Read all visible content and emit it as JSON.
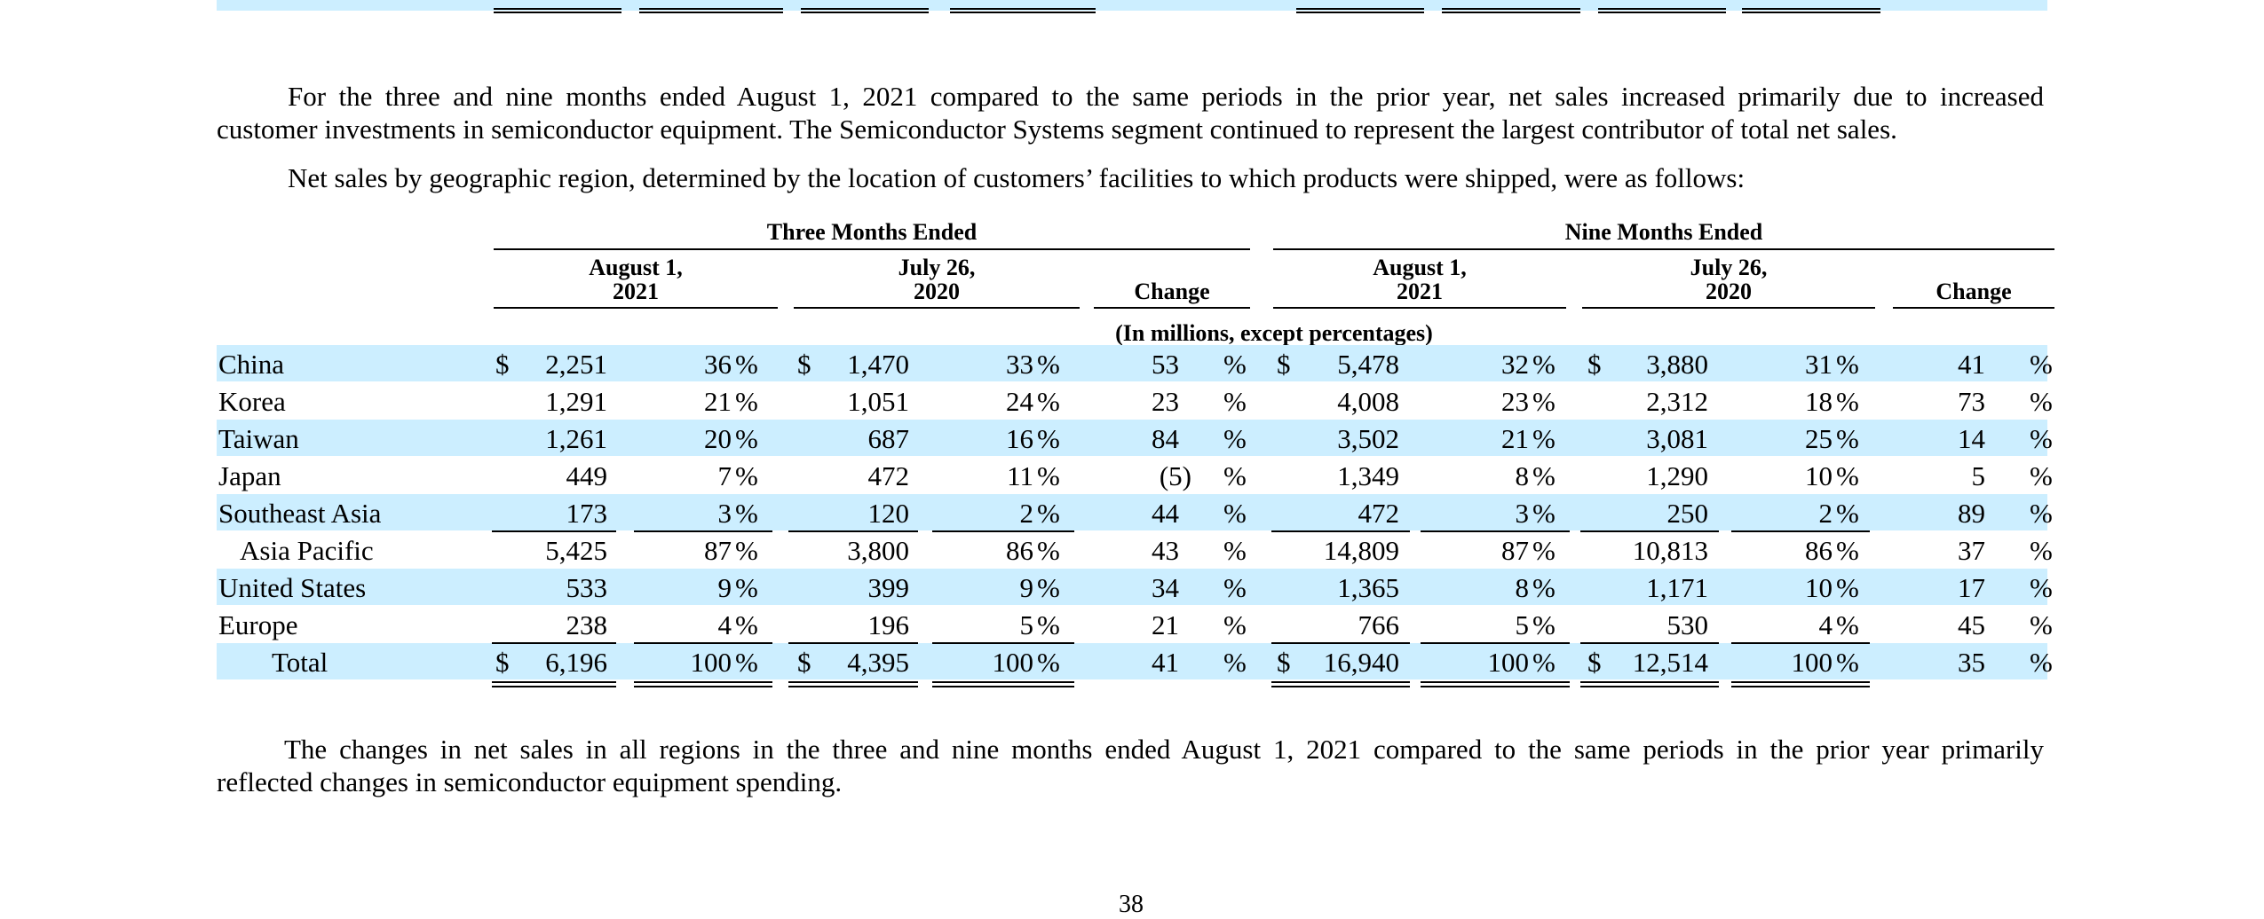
{
  "paragraphs": {
    "p1_line1": "For the three and nine months ended August 1, 2021 compared to the same periods in the prior year, net sales increased primarily due to increased",
    "p1_line2": "customer investments in semiconductor equipment. The Semiconductor Systems segment continued to represent the largest contributor of total net sales.",
    "p2": "Net sales by geographic region, determined by the location of customers’ facilities to which products were shipped, were as follows:",
    "p3_line1": "The changes in net sales in all regions in the three and nine months ended August 1, 2021 compared to the same periods in the prior year primarily",
    "p3_line2": "reflected changes in semiconductor equipment spending."
  },
  "table": {
    "group_three": "Three Months Ended",
    "group_nine": "Nine Months Ended",
    "col_aug_1": "August 1,",
    "col_aug_2": "2021",
    "col_jul_1": "July 26,",
    "col_jul_2": "2020",
    "col_change": "Change",
    "units": "(In millions, except percentages)",
    "currency": "$",
    "pct": "%",
    "rows": [
      {
        "label": "China",
        "q_cur": "2,251",
        "q_cur_pct": "36",
        "q_prev": "1,470",
        "q_prev_pct": "33",
        "q_chg": "53",
        "y_cur": "5,478",
        "y_cur_pct": "32",
        "y_prev": "3,880",
        "y_prev_pct": "31",
        "y_chg": "41"
      },
      {
        "label": "Korea",
        "q_cur": "1,291",
        "q_cur_pct": "21",
        "q_prev": "1,051",
        "q_prev_pct": "24",
        "q_chg": "23",
        "y_cur": "4,008",
        "y_cur_pct": "23",
        "y_prev": "2,312",
        "y_prev_pct": "18",
        "y_chg": "73"
      },
      {
        "label": "Taiwan",
        "q_cur": "1,261",
        "q_cur_pct": "20",
        "q_prev": "687",
        "q_prev_pct": "16",
        "q_chg": "84",
        "y_cur": "3,502",
        "y_cur_pct": "21",
        "y_prev": "3,081",
        "y_prev_pct": "25",
        "y_chg": "14"
      },
      {
        "label": "Japan",
        "q_cur": "449",
        "q_cur_pct": "7",
        "q_prev": "472",
        "q_prev_pct": "11",
        "q_chg": "(5)",
        "y_cur": "1,349",
        "y_cur_pct": "8",
        "y_prev": "1,290",
        "y_prev_pct": "10",
        "y_chg": "5"
      },
      {
        "label": "Southeast Asia",
        "q_cur": "173",
        "q_cur_pct": "3",
        "q_prev": "120",
        "q_prev_pct": "2",
        "q_chg": "44",
        "y_cur": "472",
        "y_cur_pct": "3",
        "y_prev": "250",
        "y_prev_pct": "2",
        "y_chg": "89"
      },
      {
        "label": "Asia Pacific",
        "q_cur": "5,425",
        "q_cur_pct": "87",
        "q_prev": "3,800",
        "q_prev_pct": "86",
        "q_chg": "43",
        "y_cur": "14,809",
        "y_cur_pct": "87",
        "y_prev": "10,813",
        "y_prev_pct": "86",
        "y_chg": "37"
      },
      {
        "label": "United States",
        "q_cur": "533",
        "q_cur_pct": "9",
        "q_prev": "399",
        "q_prev_pct": "9",
        "q_chg": "34",
        "y_cur": "1,365",
        "y_cur_pct": "8",
        "y_prev": "1,171",
        "y_prev_pct": "10",
        "y_chg": "17"
      },
      {
        "label": "Europe",
        "q_cur": "238",
        "q_cur_pct": "4",
        "q_prev": "196",
        "q_prev_pct": "5",
        "q_chg": "21",
        "y_cur": "766",
        "y_cur_pct": "5",
        "y_prev": "530",
        "y_prev_pct": "4",
        "y_chg": "45"
      },
      {
        "label": "Total",
        "q_cur": "6,196",
        "q_cur_pct": "100",
        "q_prev": "4,395",
        "q_prev_pct": "100",
        "q_chg": "41",
        "y_cur": "16,940",
        "y_cur_pct": "100",
        "y_prev": "12,514",
        "y_prev_pct": "100",
        "y_chg": "35"
      }
    ]
  },
  "page_number": "38",
  "colors": {
    "band": "#cceeff"
  }
}
